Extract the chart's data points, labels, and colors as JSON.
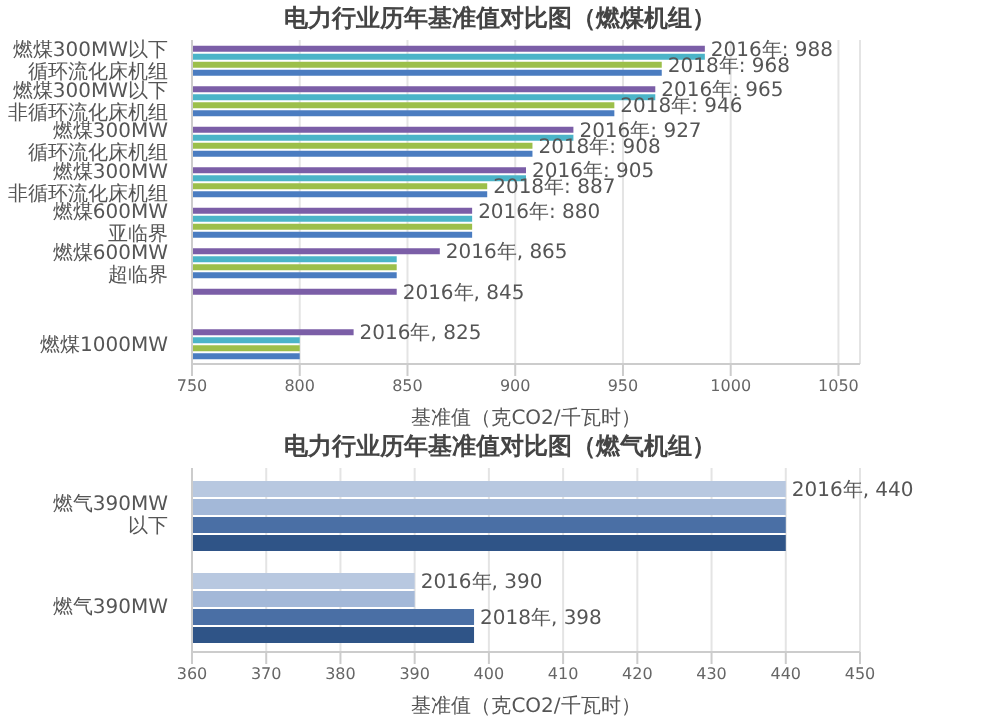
{
  "chart_data": [
    {
      "type": "bar",
      "orientation": "horizontal",
      "title": "电力行业历年基准值对比图（燃煤机组）",
      "xlabel": "基准值（克CO2/千瓦时）",
      "categories": [
        "燃煤300MW以下循环流化床机组",
        "燃煤300MW以下非循环流化床机组",
        "燃煤300MW循环流化床机组",
        "燃煤300MW非循环流化床机组",
        "燃煤600MW亚临界",
        "燃煤600MW超临界",
        null,
        "燃煤1000MW"
      ],
      "series": [
        {
          "color": "#7b5ea7",
          "values": [
            988,
            965,
            927,
            905,
            880,
            865,
            845,
            825
          ],
          "value_labels": [
            "2016年: 988",
            "2016年: 965",
            "2016年: 927",
            "2016年: 905",
            "2016年: 880",
            "2016年, 865",
            "2016年, 845",
            "2016年, 825"
          ]
        },
        {
          "color": "#4bb4c8",
          "values": [
            988,
            965,
            927,
            905,
            880,
            845,
            null,
            800
          ],
          "value_labels": [
            null,
            null,
            null,
            null,
            null,
            null,
            null,
            null
          ]
        },
        {
          "color": "#9cbf4a",
          "values": [
            968,
            946,
            908,
            887,
            880,
            845,
            null,
            800
          ],
          "value_labels": [
            "2018年: 968",
            "2018年: 946",
            "2018年: 908",
            "2018年: 887",
            null,
            null,
            null,
            null
          ]
        },
        {
          "color": "#4a7cc0",
          "values": [
            968,
            946,
            908,
            887,
            880,
            845,
            null,
            800
          ]
        }
      ],
      "xlim": [
        750,
        1060
      ],
      "xticks": [
        750,
        800,
        850,
        900,
        950,
        1000,
        1050
      ],
      "grid": "x"
    },
    {
      "type": "bar",
      "orientation": "horizontal",
      "title": "电力行业历年基准值对比图（燃气机组）",
      "xlabel": "基准值（克CO2/千瓦时）",
      "categories": [
        "燃气390MW以下",
        "燃气390MW"
      ],
      "series": [
        {
          "color": "#b8c8e0",
          "values": [
            440,
            390
          ],
          "value_labels": [
            "2016年, 440",
            "2016年, 390"
          ]
        },
        {
          "color": "#a3b8d8",
          "values": [
            440,
            390
          ]
        },
        {
          "color": "#4a6fa5",
          "values": [
            440,
            398
          ],
          "value_labels": [
            null,
            "2018年, 398"
          ]
        },
        {
          "color": "#2f5487",
          "values": [
            440,
            398
          ]
        }
      ],
      "xlim": [
        360,
        450
      ],
      "xticks": [
        360,
        370,
        380,
        390,
        400,
        410,
        420,
        430,
        440,
        450
      ],
      "grid": "x"
    }
  ]
}
